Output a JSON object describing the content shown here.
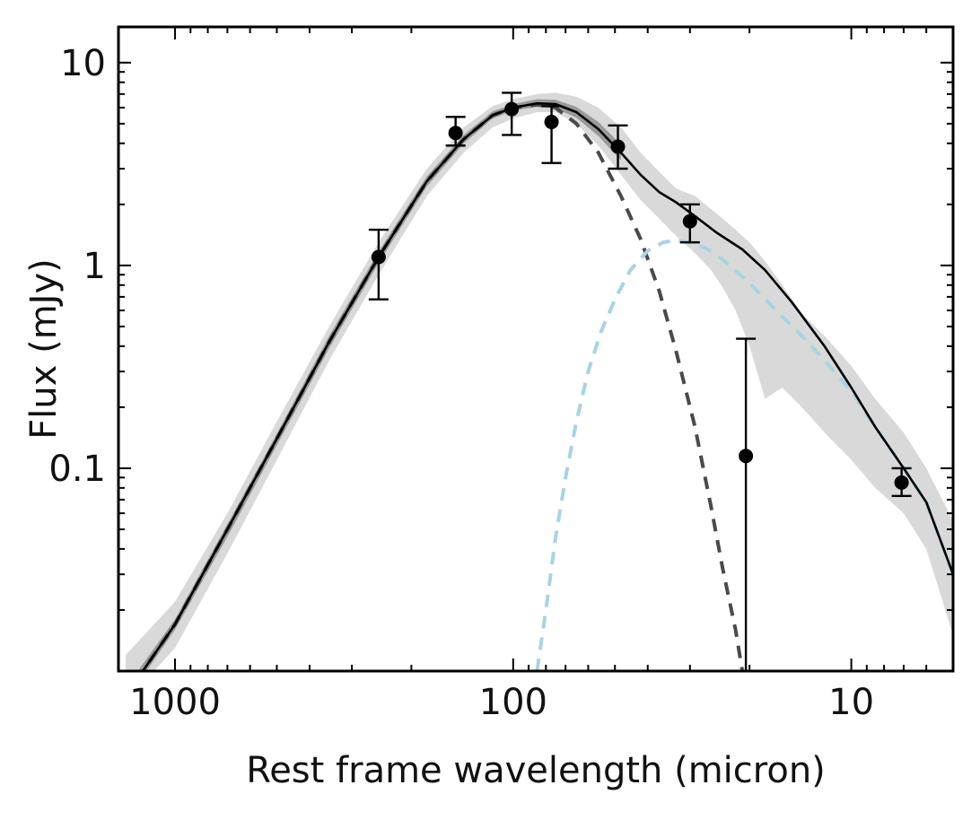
{
  "chart_data": {
    "type": "scatter",
    "title": "",
    "xlabel": "Rest frame wavelength (micron)",
    "ylabel": "Flux (mJy)",
    "x_scale": "log",
    "y_scale": "log",
    "x_reversed": true,
    "xlim": [
      1470,
      5.0
    ],
    "ylim": [
      0.01,
      15
    ],
    "x_ticks": [
      1000,
      100,
      10
    ],
    "x_tick_labels": [
      "1000",
      "100",
      "10"
    ],
    "y_ticks": [
      10,
      1,
      0.1
    ],
    "y_tick_labels": [
      "10",
      "1",
      "0.1"
    ],
    "grid": false,
    "legend": "none",
    "observations": [
      {
        "x": 250,
        "y": 1.1,
        "yerr_low": 0.42,
        "yerr_high": 0.4
      },
      {
        "x": 148,
        "y": 4.5,
        "yerr_low": 0.6,
        "yerr_high": 0.9
      },
      {
        "x": 101,
        "y": 5.9,
        "yerr_low": 1.5,
        "yerr_high": 1.2
      },
      {
        "x": 77,
        "y": 5.1,
        "yerr_low": 1.9,
        "yerr_high": 1.0
      },
      {
        "x": 49,
        "y": 3.85,
        "yerr_low": 0.85,
        "yerr_high": 1.05
      },
      {
        "x": 30,
        "y": 1.65,
        "yerr_low": 0.35,
        "yerr_high": 0.35
      },
      {
        "x": 20.5,
        "y": 0.115,
        "yerr_low": 0.114,
        "yerr_high": 0.32
      },
      {
        "x": 7.1,
        "y": 0.085,
        "yerr_low": 0.012,
        "yerr_high": 0.015
      }
    ],
    "series": [
      {
        "name": "Total model",
        "style": "solid",
        "color": "#000000",
        "x": [
          1300,
          1000,
          700,
          500,
          350,
          250,
          180,
          140,
          115,
          100,
          85,
          75,
          65,
          56,
          48,
          42,
          37,
          33,
          29,
          25,
          21,
          18,
          15,
          12,
          10,
          8.5,
          7,
          6,
          5
        ],
        "y": [
          0.009,
          0.017,
          0.05,
          0.14,
          0.42,
          1.1,
          2.6,
          4.2,
          5.5,
          6.0,
          6.3,
          6.25,
          5.7,
          4.7,
          3.6,
          2.8,
          2.3,
          2.05,
          1.75,
          1.45,
          1.2,
          0.95,
          0.66,
          0.4,
          0.25,
          0.16,
          0.1,
          0.068,
          0.03
        ]
      },
      {
        "name": "Cold dust component",
        "style": "dashed",
        "color": "#4a4a4a",
        "x": [
          1300,
          1000,
          700,
          500,
          350,
          250,
          180,
          140,
          115,
          100,
          85,
          75,
          65,
          56,
          48,
          42,
          37,
          33,
          29,
          26,
          24,
          22,
          21
        ],
        "y": [
          0.009,
          0.017,
          0.05,
          0.14,
          0.42,
          1.1,
          2.6,
          4.2,
          5.5,
          6.0,
          6.2,
          6.0,
          5.0,
          3.6,
          2.2,
          1.35,
          0.75,
          0.38,
          0.16,
          0.065,
          0.032,
          0.016,
          0.01
        ]
      },
      {
        "name": "Warm dust component",
        "style": "dashed",
        "color": "#a8d4e2",
        "x": [
          85,
          80,
          75,
          70,
          65,
          60,
          55,
          50,
          45,
          40,
          36,
          33,
          30,
          27,
          24,
          20,
          17,
          14,
          12,
          10,
          8.5,
          7,
          6,
          5
        ],
        "y": [
          0.01,
          0.02,
          0.045,
          0.09,
          0.17,
          0.3,
          0.47,
          0.68,
          0.95,
          1.18,
          1.3,
          1.33,
          1.3,
          1.22,
          1.07,
          0.82,
          0.62,
          0.45,
          0.34,
          0.24,
          0.16,
          0.1,
          0.068,
          0.03
        ]
      }
    ],
    "uncertainty_bands": [
      {
        "name": "Model range (outer)",
        "color": "#d9d9d9",
        "x": [
          1400,
          1000,
          700,
          500,
          350,
          250,
          180,
          140,
          115,
          100,
          85,
          75,
          65,
          56,
          48,
          42,
          37,
          33,
          29,
          26,
          24,
          22,
          20,
          18,
          16,
          14,
          12,
          10,
          8.5,
          7,
          6,
          5
        ],
        "y_low": [
          0.007,
          0.013,
          0.038,
          0.11,
          0.34,
          0.9,
          2.2,
          3.6,
          4.8,
          5.3,
          5.7,
          5.7,
          5.0,
          3.9,
          2.8,
          2.1,
          1.7,
          1.4,
          1.15,
          0.95,
          0.78,
          0.6,
          0.4,
          0.22,
          0.25,
          0.2,
          0.15,
          0.11,
          0.08,
          0.06,
          0.04,
          0.015
        ],
        "y_high": [
          0.012,
          0.022,
          0.06,
          0.17,
          0.5,
          1.3,
          3.0,
          4.8,
          6.1,
          6.6,
          7.0,
          7.1,
          6.8,
          6.0,
          4.8,
          3.6,
          2.9,
          2.4,
          2.2,
          1.9,
          1.7,
          1.5,
          1.3,
          1.05,
          0.8,
          0.58,
          0.45,
          0.32,
          0.22,
          0.15,
          0.1,
          0.055
        ]
      },
      {
        "name": "Model range (inner)",
        "color": "#9a9a9a",
        "x": [
          1300,
          1000,
          700,
          500,
          350,
          250,
          180,
          140,
          115,
          100,
          85,
          75,
          65,
          56,
          48
        ],
        "y_low": [
          0.0085,
          0.016,
          0.046,
          0.13,
          0.39,
          1.03,
          2.45,
          4.0,
          5.3,
          5.8,
          6.05,
          5.95,
          5.35,
          4.35,
          3.3
        ],
        "y_high": [
          0.0098,
          0.018,
          0.053,
          0.148,
          0.45,
          1.17,
          2.75,
          4.4,
          5.75,
          6.25,
          6.6,
          6.55,
          6.05,
          5.1,
          3.95
        ]
      }
    ]
  }
}
